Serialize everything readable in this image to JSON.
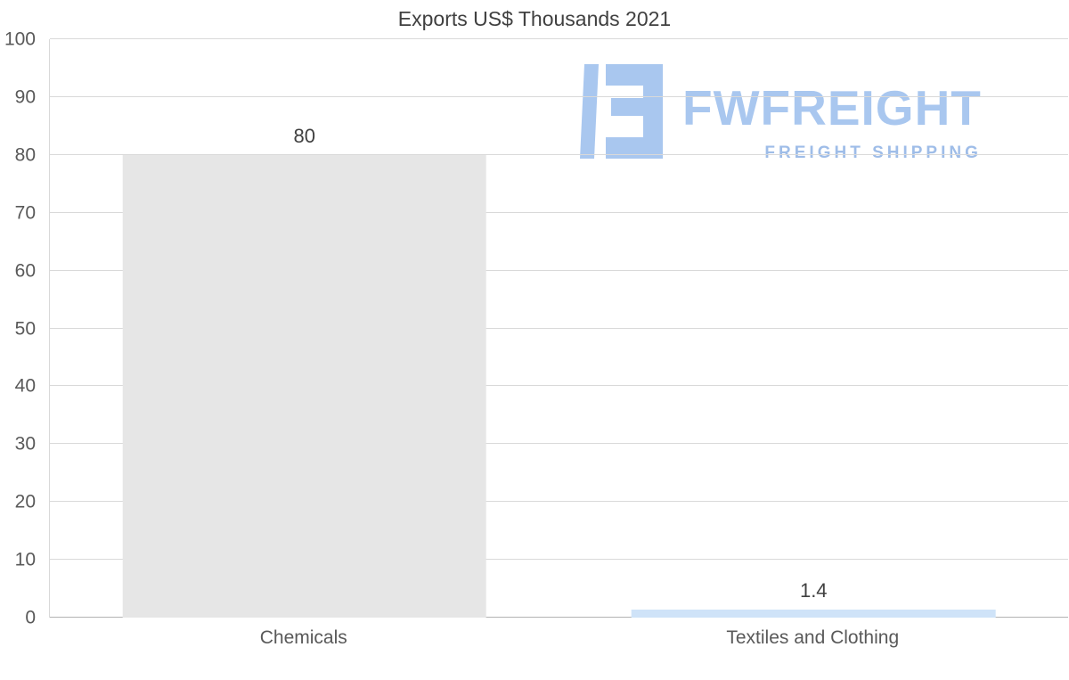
{
  "title": "Exports US$ Thousands 2021",
  "watermark": {
    "brand": "FWFREIGHT",
    "tagline": "FREIGHT SHIPPING",
    "color": "#a9c7ef"
  },
  "colors": {
    "grid": "#d9d9d9",
    "zero_line": "#b3b3b3",
    "axis_text": "#595959",
    "title_text": "#404040",
    "bar_chemicals": "#e6e6e6",
    "bar_textiles": "#cfe3f8",
    "watermark_blue": "#a9c7ef"
  },
  "chart_data": {
    "type": "bar",
    "title": "Exports US$ Thousands 2021",
    "categories": [
      "Chemicals",
      "Textiles and Clothing"
    ],
    "values": [
      80,
      1.4
    ],
    "value_labels": [
      "80",
      "1.4"
    ],
    "bar_colors": [
      "#e6e6e6",
      "#cfe3f8"
    ],
    "xlabel": "",
    "ylabel": "",
    "ylim": [
      0,
      100
    ],
    "ytick_interval": 10,
    "ytick_labels": [
      "0",
      "10",
      "20",
      "30",
      "40",
      "50",
      "60",
      "70",
      "80",
      "90",
      "100"
    ],
    "grid": true,
    "legend": false
  }
}
